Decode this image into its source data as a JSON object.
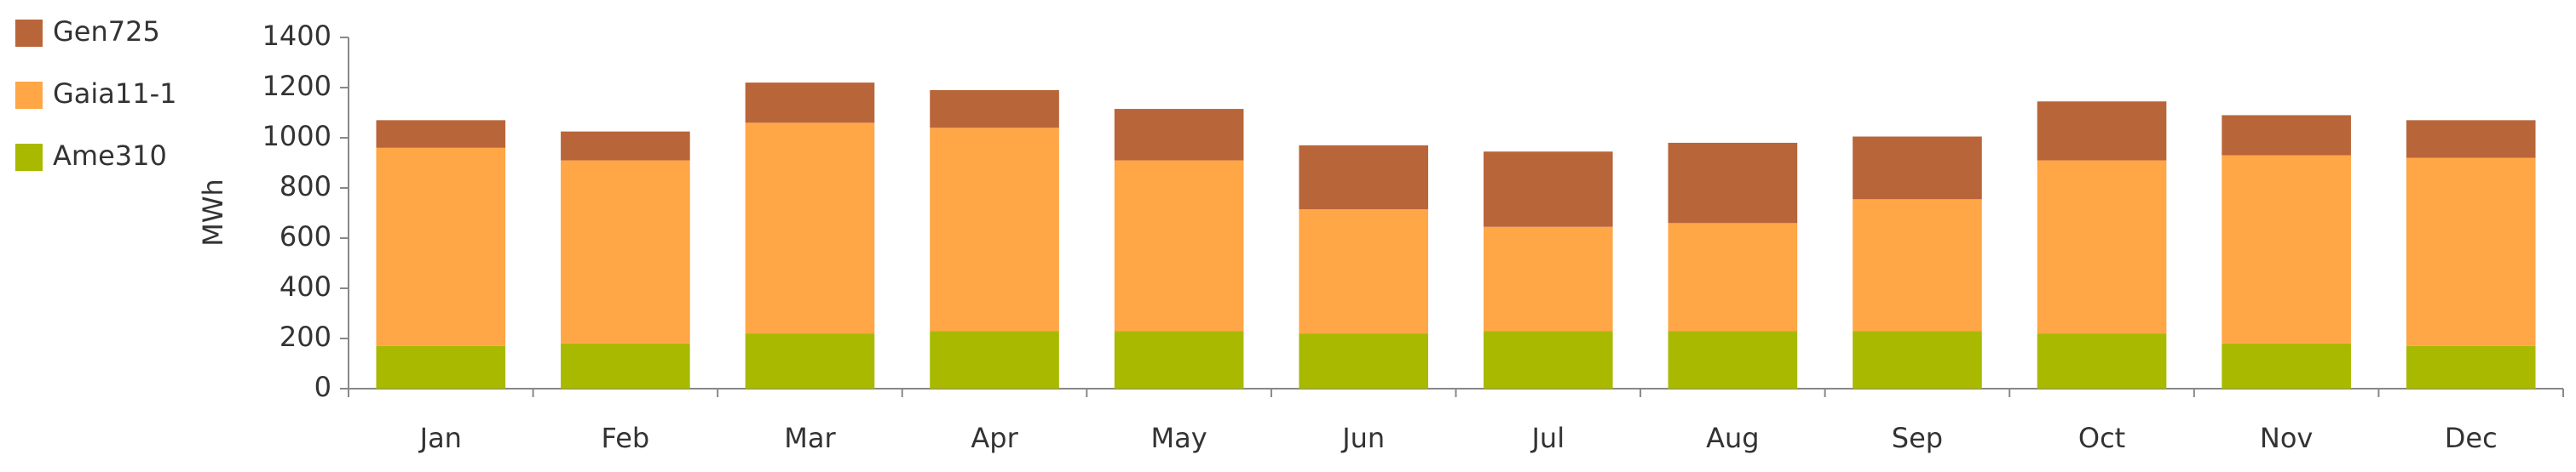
{
  "chart_data": {
    "type": "stacked_bar",
    "y_label": "MWh",
    "categories": [
      "Jan",
      "Feb",
      "Mar",
      "Apr",
      "May",
      "Jun",
      "Jul",
      "Aug",
      "Sep",
      "Oct",
      "Nov",
      "Dec"
    ],
    "series": [
      {
        "name": "Ame310",
        "color": "#a8b900",
        "values": [
          170,
          180,
          220,
          230,
          230,
          220,
          230,
          230,
          230,
          220,
          180,
          170
        ]
      },
      {
        "name": "Gaia11-1",
        "color": "#ffa646",
        "values": [
          790,
          730,
          840,
          810,
          680,
          495,
          415,
          430,
          525,
          690,
          750,
          750
        ]
      },
      {
        "name": "Gen725",
        "color": "#b9653a",
        "values": [
          110,
          115,
          160,
          150,
          205,
          255,
          300,
          320,
          250,
          235,
          160,
          150
        ]
      }
    ],
    "ylim": [
      0,
      1400
    ],
    "yticks": [
      0,
      200,
      400,
      600,
      800,
      1000,
      1200,
      1400
    ]
  }
}
